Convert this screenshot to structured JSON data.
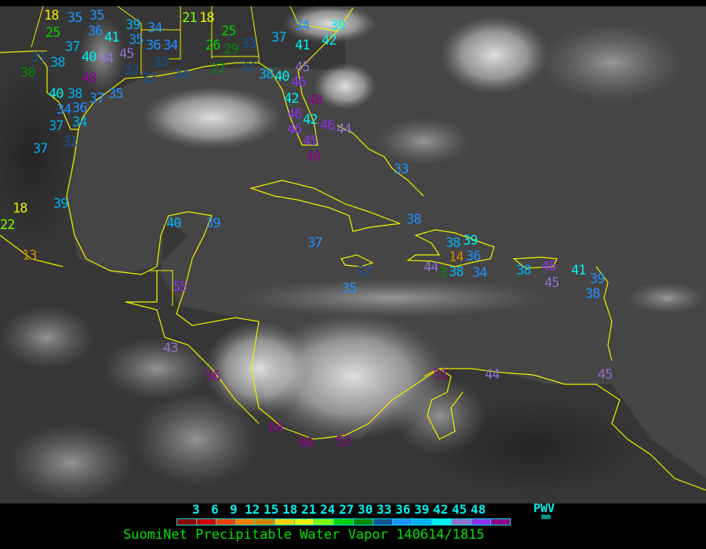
{
  "map": {
    "coastline_color": "#f0f000",
    "stations": [
      {
        "value": "18",
        "color": "#f0f000"
      },
      {
        "value": "35",
        "color": "#2090ff"
      },
      {
        "value": "35",
        "color": "#2090ff"
      },
      {
        "value": "25",
        "color": "#00d000"
      },
      {
        "value": "37",
        "color": "#00b0f0"
      },
      {
        "value": "38",
        "color": "#00b0f0"
      },
      {
        "value": "30",
        "color": "#008800"
      },
      {
        "value": "40",
        "color": "#00f0f0"
      },
      {
        "value": "44",
        "color": "#9070d0"
      },
      {
        "value": "48",
        "color": "#900090"
      },
      {
        "value": "31",
        "color": "#105090"
      },
      {
        "value": "36",
        "color": "#2090ff"
      },
      {
        "value": "41",
        "color": "#00f0f0"
      },
      {
        "value": "45",
        "color": "#9070d0"
      },
      {
        "value": "35",
        "color": "#2090ff"
      },
      {
        "value": "36",
        "color": "#2090ff"
      },
      {
        "value": "34",
        "color": "#2090ff"
      },
      {
        "value": "32",
        "color": "#105090"
      },
      {
        "value": "33",
        "color": "#105090"
      },
      {
        "value": "32",
        "color": "#105090"
      },
      {
        "value": "34",
        "color": "#105090"
      },
      {
        "value": "39",
        "color": "#00b0f0"
      },
      {
        "value": "34",
        "color": "#2090ff"
      },
      {
        "value": "21",
        "color": "#80ff00"
      },
      {
        "value": "18",
        "color": "#f0f000"
      },
      {
        "value": "25",
        "color": "#00d000"
      },
      {
        "value": "26",
        "color": "#00d000"
      },
      {
        "value": "29",
        "color": "#008800"
      },
      {
        "value": "33",
        "color": "#105090"
      },
      {
        "value": "27",
        "color": "#008800"
      },
      {
        "value": "32",
        "color": "#105090"
      },
      {
        "value": "34",
        "color": "#2090ff"
      },
      {
        "value": "37",
        "color": "#00b0f0"
      },
      {
        "value": "41",
        "color": "#00f0f0"
      },
      {
        "value": "39",
        "color": "#00f0f0"
      },
      {
        "value": "42",
        "color": "#00f0f0"
      },
      {
        "value": "38",
        "color": "#00b0f0"
      },
      {
        "value": "40",
        "color": "#00f0f0"
      },
      {
        "value": "46",
        "color": "#9030f0"
      },
      {
        "value": "45",
        "color": "#9070d0"
      },
      {
        "value": "42",
        "color": "#00f0f0"
      },
      {
        "value": "48",
        "color": "#900090"
      },
      {
        "value": "46",
        "color": "#9030f0"
      },
      {
        "value": "42",
        "color": "#00f0f0"
      },
      {
        "value": "46",
        "color": "#9030f0"
      },
      {
        "value": "44",
        "color": "#9070d0"
      },
      {
        "value": "46",
        "color": "#9030f0"
      },
      {
        "value": "45",
        "color": "#9030f0"
      },
      {
        "value": "49",
        "color": "#900090"
      },
      {
        "value": "40",
        "color": "#00f0f0"
      },
      {
        "value": "38",
        "color": "#00b0f0"
      },
      {
        "value": "37",
        "color": "#2090ff"
      },
      {
        "value": "35",
        "color": "#2090ff"
      },
      {
        "value": "34",
        "color": "#2090ff"
      },
      {
        "value": "36",
        "color": "#2090ff"
      },
      {
        "value": "37",
        "color": "#00b0f0"
      },
      {
        "value": "34",
        "color": "#00b0f0"
      },
      {
        "value": "37",
        "color": "#00b0f0"
      },
      {
        "value": "32",
        "color": "#105090"
      },
      {
        "value": "39",
        "color": "#00b0f0"
      },
      {
        "value": "18",
        "color": "#f0f000"
      },
      {
        "value": "22",
        "color": "#80ff00"
      },
      {
        "value": "13",
        "color": "#d08800"
      },
      {
        "value": "33",
        "color": "#2090ff"
      },
      {
        "value": "40",
        "color": "#00b0f0"
      },
      {
        "value": "39",
        "color": "#2090ff"
      },
      {
        "value": "37",
        "color": "#2090ff"
      },
      {
        "value": "38",
        "color": "#2090ff"
      },
      {
        "value": "35",
        "color": "#2090ff"
      },
      {
        "value": "32",
        "color": "#105090"
      },
      {
        "value": "38",
        "color": "#00b0f0"
      },
      {
        "value": "39",
        "color": "#00f0f0"
      },
      {
        "value": "36",
        "color": "#2090ff"
      },
      {
        "value": "14",
        "color": "#d08800"
      },
      {
        "value": "44",
        "color": "#9070d0"
      },
      {
        "value": "38",
        "color": "#00b0f0"
      },
      {
        "value": "3",
        "color": "#008800"
      },
      {
        "value": "34",
        "color": "#2090ff"
      },
      {
        "value": "38",
        "color": "#00b0f0"
      },
      {
        "value": "46",
        "color": "#9030f0"
      },
      {
        "value": "45",
        "color": "#9070d0"
      },
      {
        "value": "41",
        "color": "#00f0f0"
      },
      {
        "value": "39",
        "color": "#2090ff"
      },
      {
        "value": "38",
        "color": "#2090ff"
      },
      {
        "value": "55",
        "color": "#9030f0"
      },
      {
        "value": "43",
        "color": "#9070d0"
      },
      {
        "value": "56",
        "color": "#900090"
      },
      {
        "value": "51",
        "color": "#900090"
      },
      {
        "value": "44",
        "color": "#9070d0"
      },
      {
        "value": "45",
        "color": "#9070d0"
      },
      {
        "value": "64",
        "color": "#900090"
      },
      {
        "value": "60",
        "color": "#900090"
      },
      {
        "value": "53",
        "color": "#900090"
      }
    ]
  },
  "legend": {
    "ticks": [
      "3",
      "6",
      "9",
      "12",
      "15",
      "18",
      "21",
      "24",
      "27",
      "30",
      "33",
      "36",
      "39",
      "42",
      "45",
      "48"
    ],
    "colors": [
      "#8b0000",
      "#d00000",
      "#f04000",
      "#ff8000",
      "#d08800",
      "#ffd000",
      "#f0f000",
      "#80ff00",
      "#00d000",
      "#008800",
      "#105090",
      "#2090ff",
      "#00b0f0",
      "#00f0f0",
      "#9070d0",
      "#9030f0",
      "#900090"
    ],
    "unit_label": "PWV",
    "unit": "mm",
    "title": "SuomiNet Precipitable Water Vapor 140614/1815"
  }
}
